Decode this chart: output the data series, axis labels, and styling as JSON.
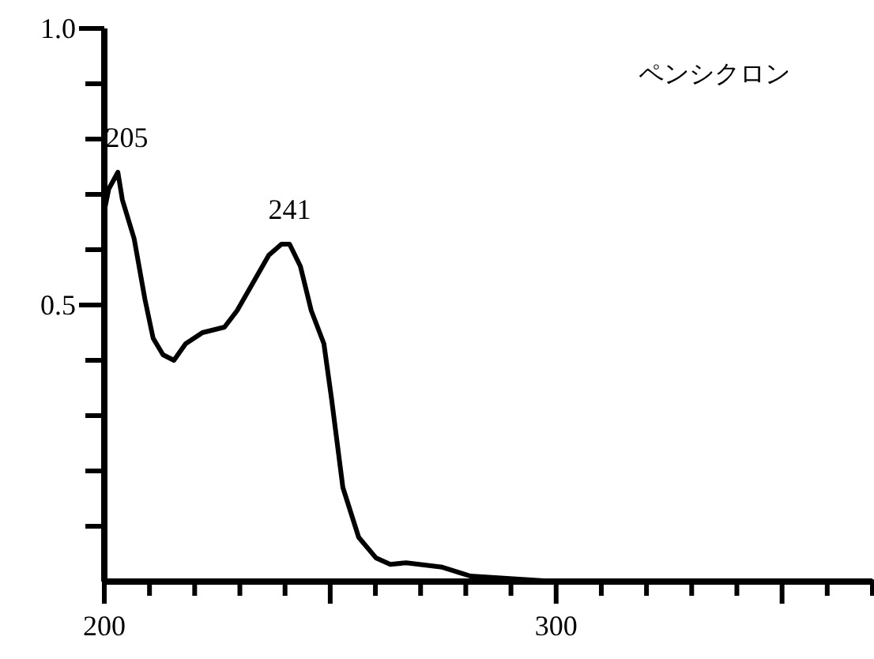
{
  "chart_data": {
    "type": "line",
    "title": "ペンシクロン",
    "xlim": [
      200,
      370
    ],
    "ylim": [
      0,
      1.0
    ],
    "xticks": [
      200,
      {
        "value": 210,
        "label": null
      },
      {
        "value": 220,
        "label": null
      },
      {
        "value": 230,
        "label": null
      },
      {
        "value": 240,
        "label": null
      },
      {
        "value": 250,
        "label": null
      },
      {
        "value": 260,
        "label": null
      },
      {
        "value": 270,
        "label": null
      },
      {
        "value": 280,
        "label": null
      },
      {
        "value": 290,
        "label": null
      },
      300,
      {
        "value": 310,
        "label": null
      },
      {
        "value": 320,
        "label": null
      },
      {
        "value": 330,
        "label": null
      },
      {
        "value": 340,
        "label": null
      },
      {
        "value": 350,
        "label": null
      },
      {
        "value": 360,
        "label": null
      },
      {
        "value": 370,
        "label": null
      }
    ],
    "yticks": [
      {
        "value": 0.1,
        "label": null
      },
      {
        "value": 0.2,
        "label": null
      },
      {
        "value": 0.3,
        "label": null
      },
      {
        "value": 0.4,
        "label": null
      },
      0.5,
      {
        "value": 0.6,
        "label": null
      },
      {
        "value": 0.7,
        "label": null
      },
      {
        "value": 0.8,
        "label": null
      },
      {
        "value": 0.9,
        "label": null
      },
      {
        "value": 1.0,
        "label": "1.0"
      }
    ],
    "annotations": [
      {
        "text": "205",
        "x": 205,
        "y": 0.74
      },
      {
        "text": "241",
        "x": 241,
        "y": 0.61
      }
    ],
    "series": [
      {
        "color": "#000000",
        "x": [
          200,
          201,
          203,
          204,
          206.6,
          209,
          210.8,
          213,
          215.4,
          218,
          221.7,
          226.6,
          229.4,
          233.6,
          236.4,
          239.2,
          241,
          243.4,
          245.8,
          248.6,
          250.3,
          252.8,
          256.3,
          260.1,
          263.3,
          266.8,
          274.8,
          279.4,
          281,
          300,
          370
        ],
        "values": [
          0.67,
          0.71,
          0.74,
          0.69,
          0.62,
          0.51,
          0.44,
          0.41,
          0.4,
          0.43,
          0.45,
          0.46,
          0.49,
          0.55,
          0.59,
          0.61,
          0.61,
          0.57,
          0.49,
          0.43,
          0.33,
          0.17,
          0.08,
          0.043,
          0.031,
          0.034,
          0.026,
          0.014,
          0.01,
          0,
          0
        ]
      }
    ]
  }
}
